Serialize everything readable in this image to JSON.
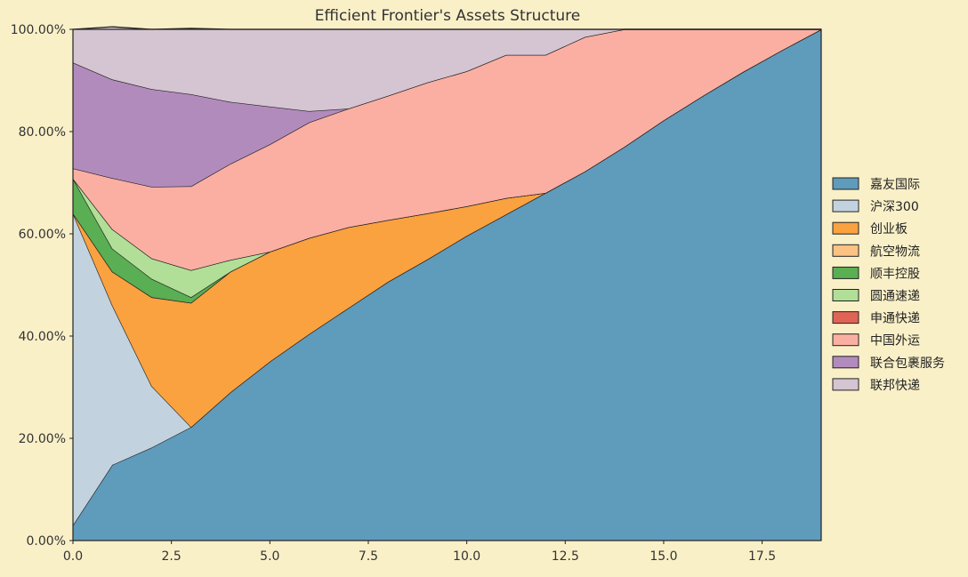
{
  "chart_data": {
    "type": "area",
    "title": "Efficient Frontier's Assets Structure",
    "xlabel": "",
    "ylabel": "",
    "xlim": [
      0,
      19
    ],
    "ylim": [
      0,
      100
    ],
    "x_ticks": [
      0,
      2.5,
      5,
      7.5,
      10,
      12.5,
      15,
      17.5
    ],
    "x_tick_labels": [
      "0.0",
      "2.5",
      "5.0",
      "7.5",
      "10.0",
      "12.5",
      "15.0",
      "17.5"
    ],
    "y_ticks": [
      0,
      20,
      40,
      60,
      80,
      100
    ],
    "y_tick_labels": [
      "0.00%",
      "20.00%",
      "40.00%",
      "60.00%",
      "80.00%",
      "100.00%"
    ],
    "grid": true,
    "legend_position": "right",
    "stacked": true,
    "x": [
      0,
      1,
      2,
      3,
      4,
      5,
      6,
      7,
      8,
      9,
      10,
      11,
      12,
      13,
      14,
      15,
      16,
      17,
      18,
      19
    ],
    "series": [
      {
        "name": "嘉友国际",
        "color": "#5f9bbb",
        "values": [
          3,
          14.8,
          18.2,
          22.2,
          29,
          35,
          40.4,
          45.5,
          50.6,
          55,
          59.6,
          63.8,
          68,
          72.2,
          77,
          82.2,
          87,
          91.6,
          95.9,
          100
        ]
      },
      {
        "name": "沪深300",
        "color": "#c2d3df",
        "values": [
          61,
          31.2,
          12,
          0,
          0,
          0,
          0,
          0,
          0,
          0,
          0,
          0,
          0,
          0,
          0,
          0,
          0,
          0,
          0,
          0
        ]
      },
      {
        "name": "创业板",
        "color": "#faa140",
        "values": [
          0,
          6.6,
          17.4,
          24.3,
          23.6,
          21.5,
          18.8,
          15.8,
          12.1,
          9,
          5.8,
          3.2,
          0,
          0,
          0,
          0,
          0,
          0,
          0,
          0
        ]
      },
      {
        "name": "航空物流",
        "color": "#fbc283",
        "values": [
          0,
          0,
          0,
          0,
          0,
          0,
          0,
          0,
          0,
          0,
          0,
          0,
          0,
          0,
          0,
          0,
          0,
          0,
          0,
          0
        ]
      },
      {
        "name": "顺丰控股",
        "color": "#5aae53",
        "values": [
          6.8,
          4.5,
          3.6,
          1.1,
          0,
          0,
          0,
          0,
          0,
          0,
          0,
          0,
          0,
          0,
          0,
          0,
          0,
          0,
          0,
          0
        ]
      },
      {
        "name": "圆通速递",
        "color": "#b1df98",
        "values": [
          0,
          3.8,
          4,
          5.3,
          2.3,
          0,
          0,
          0,
          0,
          0,
          0,
          0,
          0,
          0,
          0,
          0,
          0,
          0,
          0,
          0
        ]
      },
      {
        "name": "申通快递",
        "color": "#e06456",
        "values": [
          0,
          0,
          0,
          0,
          0,
          0,
          0,
          0,
          0,
          0,
          0,
          0,
          0,
          0,
          0,
          0,
          0,
          0,
          0,
          0
        ]
      },
      {
        "name": "中国外运",
        "color": "#fbafa2",
        "values": [
          2,
          10,
          14,
          16.4,
          18.8,
          21,
          22.6,
          23.2,
          24.3,
          25.6,
          26.4,
          28,
          27,
          26.3,
          23,
          17.8,
          13,
          8.4,
          4.1,
          0
        ]
      },
      {
        "name": "联合包裹服务",
        "color": "#b28bbd",
        "values": [
          20.7,
          19.3,
          19.1,
          18,
          12.1,
          7.4,
          2.2,
          0,
          0,
          0,
          0,
          0,
          0,
          0,
          0,
          0,
          0,
          0,
          0,
          0
        ]
      },
      {
        "name": "联邦快递",
        "color": "#d5c4d1",
        "values": [
          6.5,
          10.3,
          11.7,
          12.9,
          14.2,
          15.1,
          16,
          15.5,
          13,
          10.4,
          8.2,
          5,
          5,
          1.5,
          0,
          0,
          0,
          0,
          0,
          0
        ]
      }
    ]
  }
}
